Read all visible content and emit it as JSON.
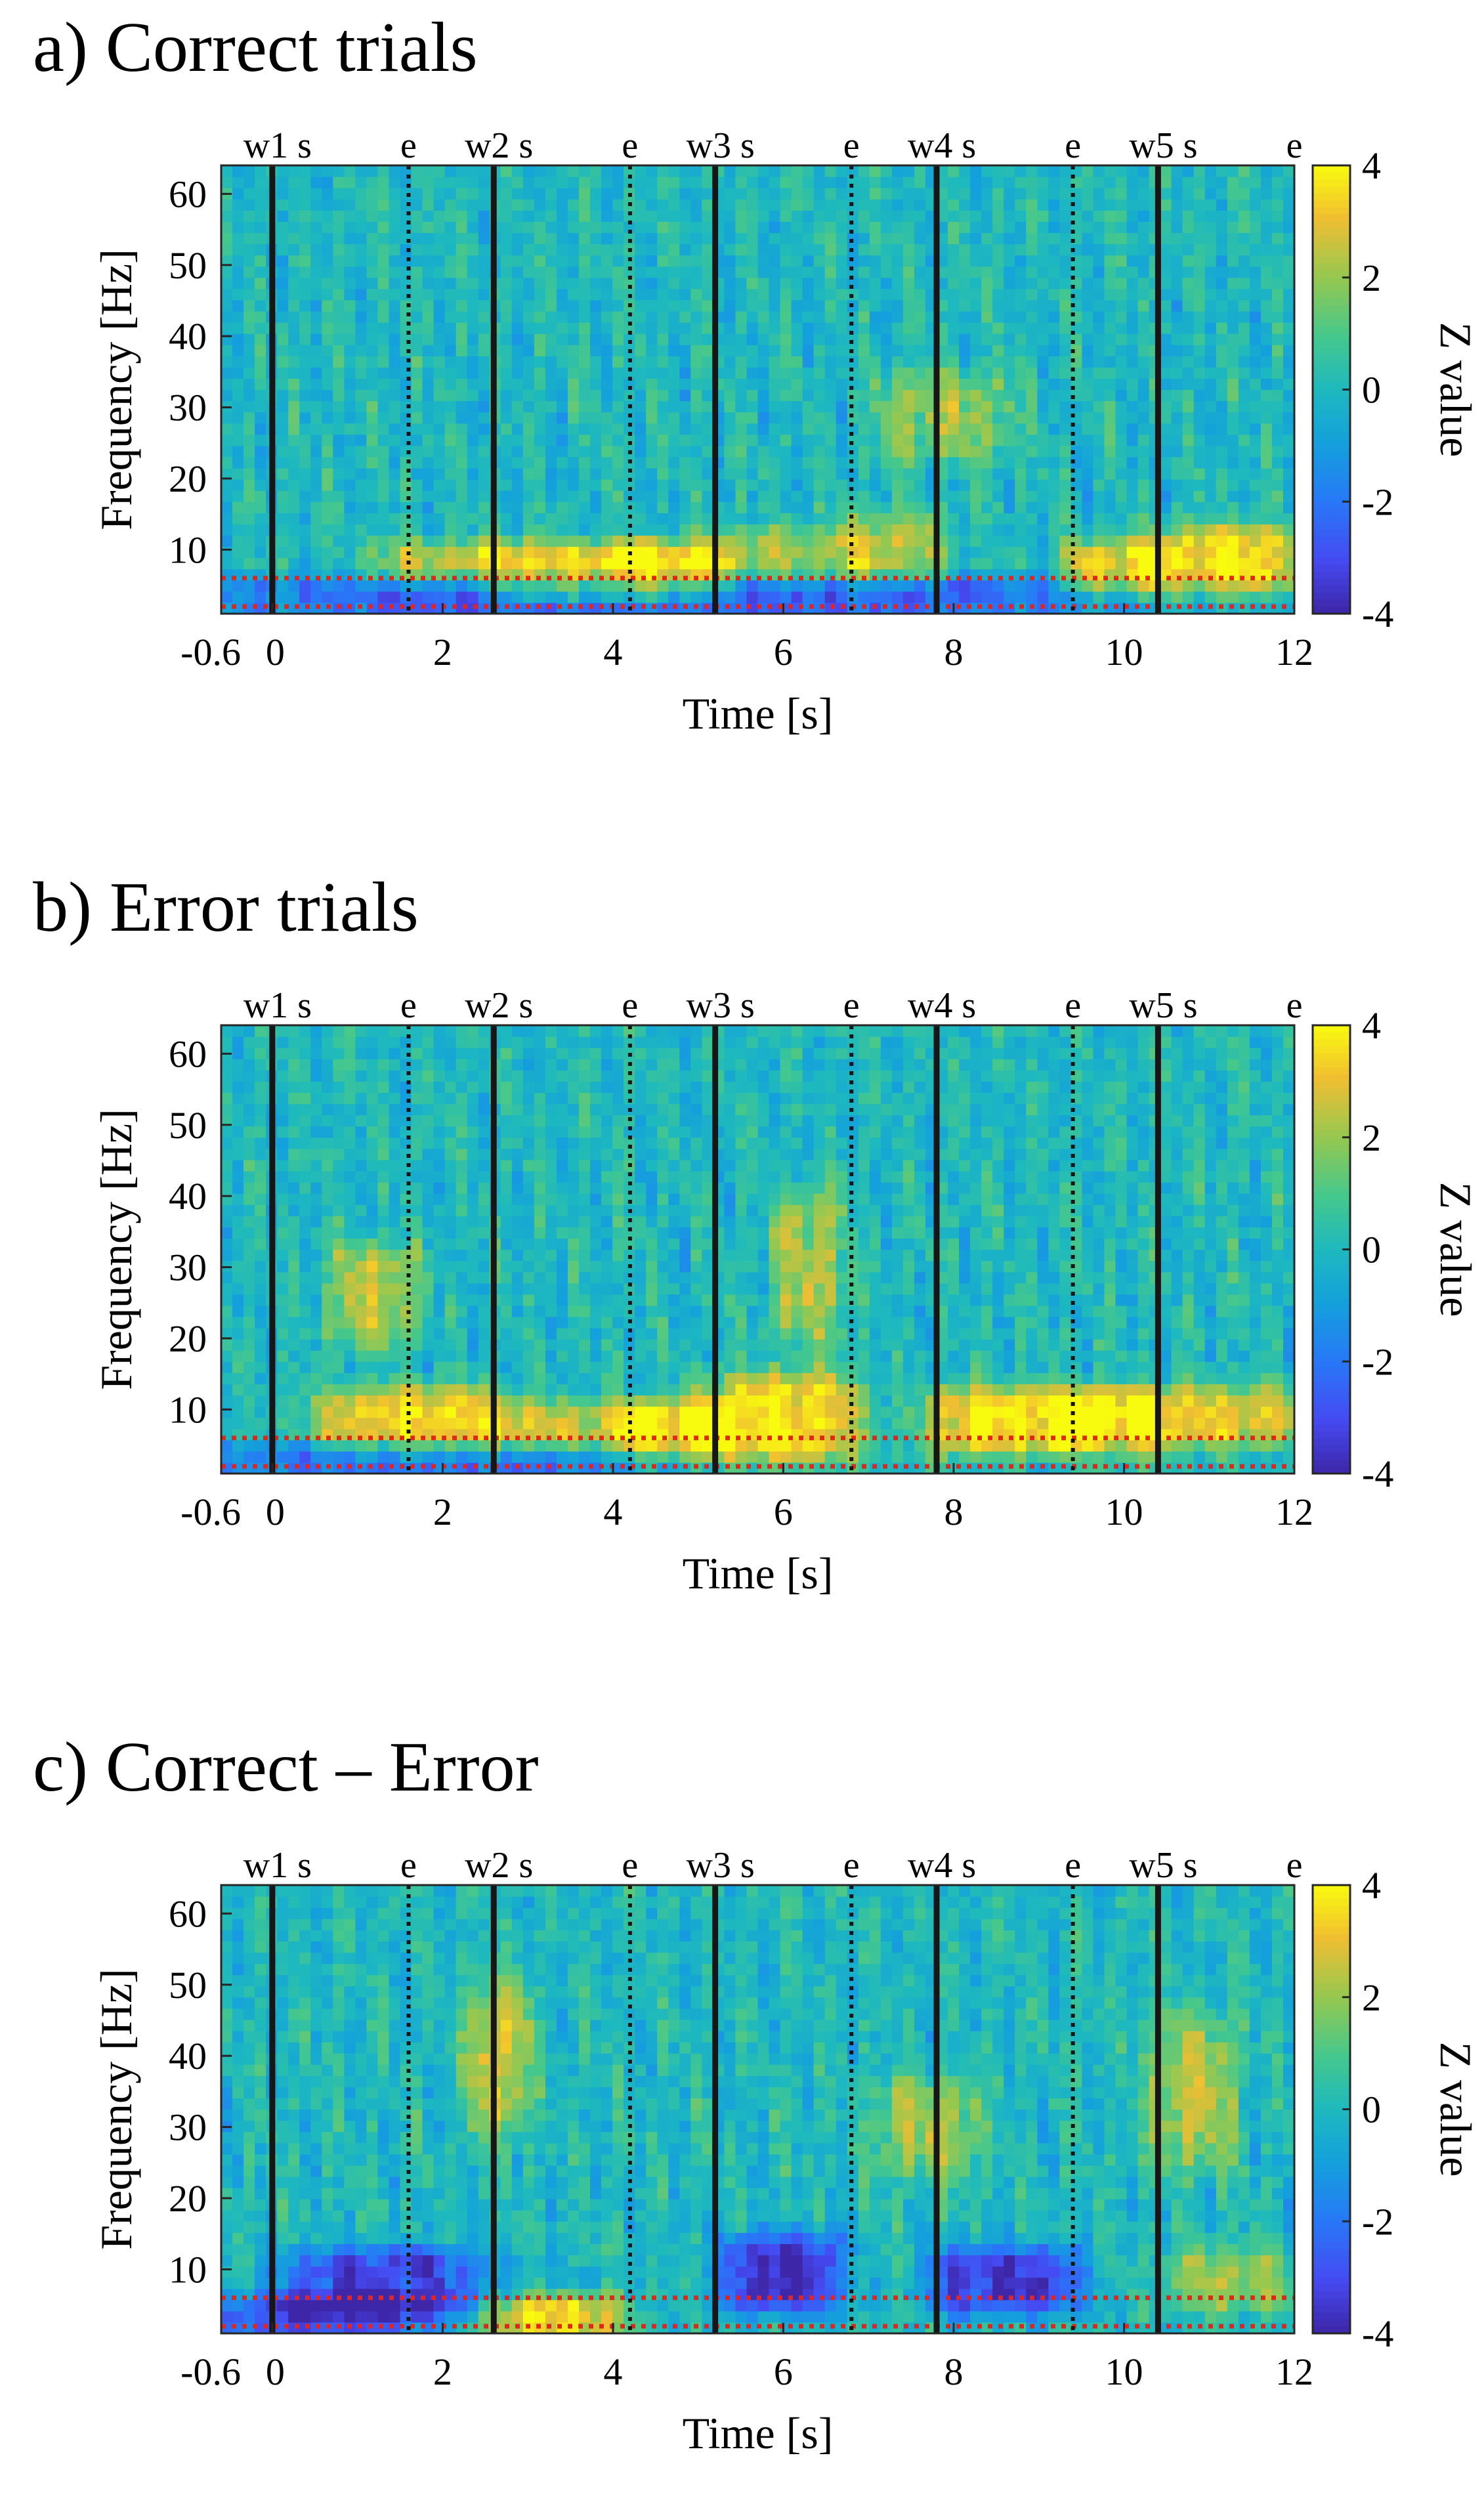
{
  "chart_data": [
    {
      "type": "heatmap",
      "panel_label": "a) Correct trials",
      "xlabel": "Time [s]",
      "ylabel": "Frequency [Hz]",
      "xlim": [
        -0.6,
        12
      ],
      "ylim": [
        1,
        64
      ],
      "xticks": [
        {
          "value": -0.6,
          "label": "-0.6"
        },
        {
          "value": 0,
          "label": "0"
        },
        {
          "value": 2,
          "label": "2"
        },
        {
          "value": 4,
          "label": "4"
        },
        {
          "value": 6,
          "label": "6"
        },
        {
          "value": 8,
          "label": "8"
        },
        {
          "value": 10,
          "label": "10"
        },
        {
          "value": 12,
          "label": "12"
        }
      ],
      "yticks": [
        {
          "value": 10,
          "label": "10"
        },
        {
          "value": 20,
          "label": "20"
        },
        {
          "value": 30,
          "label": "30"
        },
        {
          "value": 40,
          "label": "40"
        },
        {
          "value": 50,
          "label": "50"
        },
        {
          "value": 60,
          "label": "60"
        }
      ],
      "colorbar": {
        "label": "Z value",
        "range": [
          -4,
          4
        ],
        "ticks": [
          {
            "value": 4,
            "label": "4"
          },
          {
            "value": 2,
            "label": "2"
          },
          {
            "value": 0,
            "label": "0"
          },
          {
            "value": -2,
            "label": "-2"
          },
          {
            "value": -4,
            "label": "-4"
          }
        ],
        "colormap": "parula"
      },
      "event_markers": [
        {
          "time": 0,
          "style": "solid",
          "label": "w1 s"
        },
        {
          "time": 1.6,
          "style": "dotted",
          "label": "e"
        },
        {
          "time": 2.6,
          "style": "solid",
          "label": "w2 s"
        },
        {
          "time": 4.2,
          "style": "dotted",
          "label": "e"
        },
        {
          "time": 5.2,
          "style": "solid",
          "label": "w3 s"
        },
        {
          "time": 6.8,
          "style": "dotted",
          "label": "e"
        },
        {
          "time": 7.8,
          "style": "solid",
          "label": "w4 s"
        },
        {
          "time": 9.4,
          "style": "dotted",
          "label": "e"
        },
        {
          "time": 10.4,
          "style": "solid",
          "label": "w5 s"
        },
        {
          "time": 12,
          "style": "dotted",
          "label": "e"
        }
      ],
      "band_lines_hz": [
        2,
        6
      ],
      "band_line_color": "#e8231b",
      "pattern": {
        "features": [
          {
            "t": [
              1.2,
              2.6
            ],
            "f": [
              6,
              10
            ],
            "z": 2.2
          },
          {
            "t": [
              2.6,
              4.2
            ],
            "f": [
              4,
              10
            ],
            "z": 3.5
          },
          {
            "t": [
              4.2,
              5.2
            ],
            "f": [
              4,
              10
            ],
            "z": 3.8
          },
          {
            "t": [
              5.2,
              6.8
            ],
            "f": [
              6,
              12
            ],
            "z": 2.0
          },
          {
            "t": [
              6.8,
              7.8
            ],
            "f": [
              6,
              14
            ],
            "z": 2.2
          },
          {
            "t": [
              7.2,
              8.6
            ],
            "f": [
              24,
              34
            ],
            "z": 2.0
          },
          {
            "t": [
              9.4,
              10.4
            ],
            "f": [
              5,
              10
            ],
            "z": 3.2
          },
          {
            "t": [
              10.4,
              12
            ],
            "f": [
              5,
              12
            ],
            "z": 3.6
          },
          {
            "t": [
              -0.6,
              9.8
            ],
            "f": [
              2,
              5
            ],
            "z": -2.8
          }
        ]
      }
    },
    {
      "type": "heatmap",
      "panel_label": "b) Error trials",
      "xlabel": "Time [s]",
      "ylabel": "Frequency [Hz]",
      "xlim": [
        -0.6,
        12
      ],
      "ylim": [
        1,
        64
      ],
      "xticks": [
        {
          "value": -0.6,
          "label": "-0.6"
        },
        {
          "value": 0,
          "label": "0"
        },
        {
          "value": 2,
          "label": "2"
        },
        {
          "value": 4,
          "label": "4"
        },
        {
          "value": 6,
          "label": "6"
        },
        {
          "value": 8,
          "label": "8"
        },
        {
          "value": 10,
          "label": "10"
        },
        {
          "value": 12,
          "label": "12"
        }
      ],
      "yticks": [
        {
          "value": 10,
          "label": "10"
        },
        {
          "value": 20,
          "label": "20"
        },
        {
          "value": 30,
          "label": "30"
        },
        {
          "value": 40,
          "label": "40"
        },
        {
          "value": 50,
          "label": "50"
        },
        {
          "value": 60,
          "label": "60"
        }
      ],
      "colorbar": {
        "label": "Z value",
        "range": [
          -4,
          4
        ],
        "ticks": [
          {
            "value": 4,
            "label": "4"
          },
          {
            "value": 2,
            "label": "2"
          },
          {
            "value": 0,
            "label": "0"
          },
          {
            "value": -2,
            "label": "-2"
          },
          {
            "value": -4,
            "label": "-4"
          }
        ],
        "colormap": "parula"
      },
      "event_markers": [
        {
          "time": 0,
          "style": "solid",
          "label": "w1 s"
        },
        {
          "time": 1.6,
          "style": "dotted",
          "label": "e"
        },
        {
          "time": 2.6,
          "style": "solid",
          "label": "w2 s"
        },
        {
          "time": 4.2,
          "style": "dotted",
          "label": "e"
        },
        {
          "time": 5.2,
          "style": "solid",
          "label": "w3 s"
        },
        {
          "time": 6.8,
          "style": "dotted",
          "label": "e"
        },
        {
          "time": 7.8,
          "style": "solid",
          "label": "w4 s"
        },
        {
          "time": 9.4,
          "style": "dotted",
          "label": "e"
        },
        {
          "time": 10.4,
          "style": "solid",
          "label": "w5 s"
        },
        {
          "time": 12,
          "style": "dotted",
          "label": "e"
        }
      ],
      "band_lines_hz": [
        2,
        6
      ],
      "band_line_color": "#e8231b",
      "pattern": {
        "features": [
          {
            "t": [
              0.6,
              2.6
            ],
            "f": [
              5,
              12
            ],
            "z": 3.4
          },
          {
            "t": [
              0.8,
              1.6
            ],
            "f": [
              20,
              32
            ],
            "z": 2.4
          },
          {
            "t": [
              2.6,
              4.2
            ],
            "f": [
              5,
              10
            ],
            "z": 2.6
          },
          {
            "t": [
              4.2,
              5.2
            ],
            "f": [
              5,
              10
            ],
            "z": 3.6
          },
          {
            "t": [
              5.2,
              6.8
            ],
            "f": [
              4,
              14
            ],
            "z": 3.8
          },
          {
            "t": [
              6.0,
              6.6
            ],
            "f": [
              20,
              40
            ],
            "z": 2.2
          },
          {
            "t": [
              7.8,
              9.4
            ],
            "f": [
              5,
              12
            ],
            "z": 3.8
          },
          {
            "t": [
              9.4,
              10.4
            ],
            "f": [
              5,
              12
            ],
            "z": 3.5
          },
          {
            "t": [
              10.4,
              12
            ],
            "f": [
              6,
              12
            ],
            "z": 3.0
          },
          {
            "t": [
              -0.6,
              4.0
            ],
            "f": [
              2,
              4
            ],
            "z": -2.4
          }
        ]
      }
    },
    {
      "type": "heatmap",
      "panel_label": "c) Correct – Error",
      "xlabel": "Time [s]",
      "ylabel": "Frequency [Hz]",
      "xlim": [
        -0.6,
        12
      ],
      "ylim": [
        1,
        64
      ],
      "xticks": [
        {
          "value": -0.6,
          "label": "-0.6"
        },
        {
          "value": 0,
          "label": "0"
        },
        {
          "value": 2,
          "label": "2"
        },
        {
          "value": 4,
          "label": "4"
        },
        {
          "value": 6,
          "label": "6"
        },
        {
          "value": 8,
          "label": "8"
        },
        {
          "value": 10,
          "label": "10"
        },
        {
          "value": 12,
          "label": "12"
        }
      ],
      "yticks": [
        {
          "value": 10,
          "label": "10"
        },
        {
          "value": 20,
          "label": "20"
        },
        {
          "value": 30,
          "label": "30"
        },
        {
          "value": 40,
          "label": "40"
        },
        {
          "value": 50,
          "label": "50"
        },
        {
          "value": 60,
          "label": "60"
        }
      ],
      "colorbar": {
        "label": "Z value",
        "range": [
          -4,
          4
        ],
        "ticks": [
          {
            "value": 4,
            "label": "4"
          },
          {
            "value": 2,
            "label": "2"
          },
          {
            "value": 0,
            "label": "0"
          },
          {
            "value": -2,
            "label": "-2"
          },
          {
            "value": -4,
            "label": "-4"
          }
        ],
        "colormap": "parula"
      },
      "event_markers": [
        {
          "time": 0,
          "style": "solid",
          "label": "w1 s"
        },
        {
          "time": 1.6,
          "style": "dotted",
          "label": "e"
        },
        {
          "time": 2.6,
          "style": "solid",
          "label": "w2 s"
        },
        {
          "time": 4.2,
          "style": "dotted",
          "label": "e"
        },
        {
          "time": 5.2,
          "style": "solid",
          "label": "w3 s"
        },
        {
          "time": 6.8,
          "style": "dotted",
          "label": "e"
        },
        {
          "time": 7.8,
          "style": "solid",
          "label": "w4 s"
        },
        {
          "time": 9.4,
          "style": "dotted",
          "label": "e"
        },
        {
          "time": 10.4,
          "style": "solid",
          "label": "w5 s"
        },
        {
          "time": 12,
          "style": "dotted",
          "label": "e"
        }
      ],
      "band_lines_hz": [
        2,
        6
      ],
      "band_line_color": "#e8231b",
      "pattern": {
        "features": [
          {
            "t": [
              0.2,
              2.4
            ],
            "f": [
              5,
              12
            ],
            "z": -3.2
          },
          {
            "t": [
              5.4,
              6.6
            ],
            "f": [
              5,
              14
            ],
            "z": -3.8
          },
          {
            "t": [
              7.8,
              9.4
            ],
            "f": [
              5,
              12
            ],
            "z": -3.4
          },
          {
            "t": [
              -0.6,
              1.8
            ],
            "f": [
              2,
              5
            ],
            "z": -3.0
          },
          {
            "t": [
              2.6,
              4.0
            ],
            "f": [
              2,
              5
            ],
            "z": 3.4
          },
          {
            "t": [
              2.4,
              2.9
            ],
            "f": [
              30,
              50
            ],
            "z": 2.6
          },
          {
            "t": [
              7.2,
              8.2
            ],
            "f": [
              24,
              36
            ],
            "z": 2.0
          },
          {
            "t": [
              10.4,
              11.2
            ],
            "f": [
              25,
              45
            ],
            "z": 2.2
          },
          {
            "t": [
              10.6,
              11.8
            ],
            "f": [
              5,
              12
            ],
            "z": 2.0
          }
        ]
      }
    }
  ]
}
